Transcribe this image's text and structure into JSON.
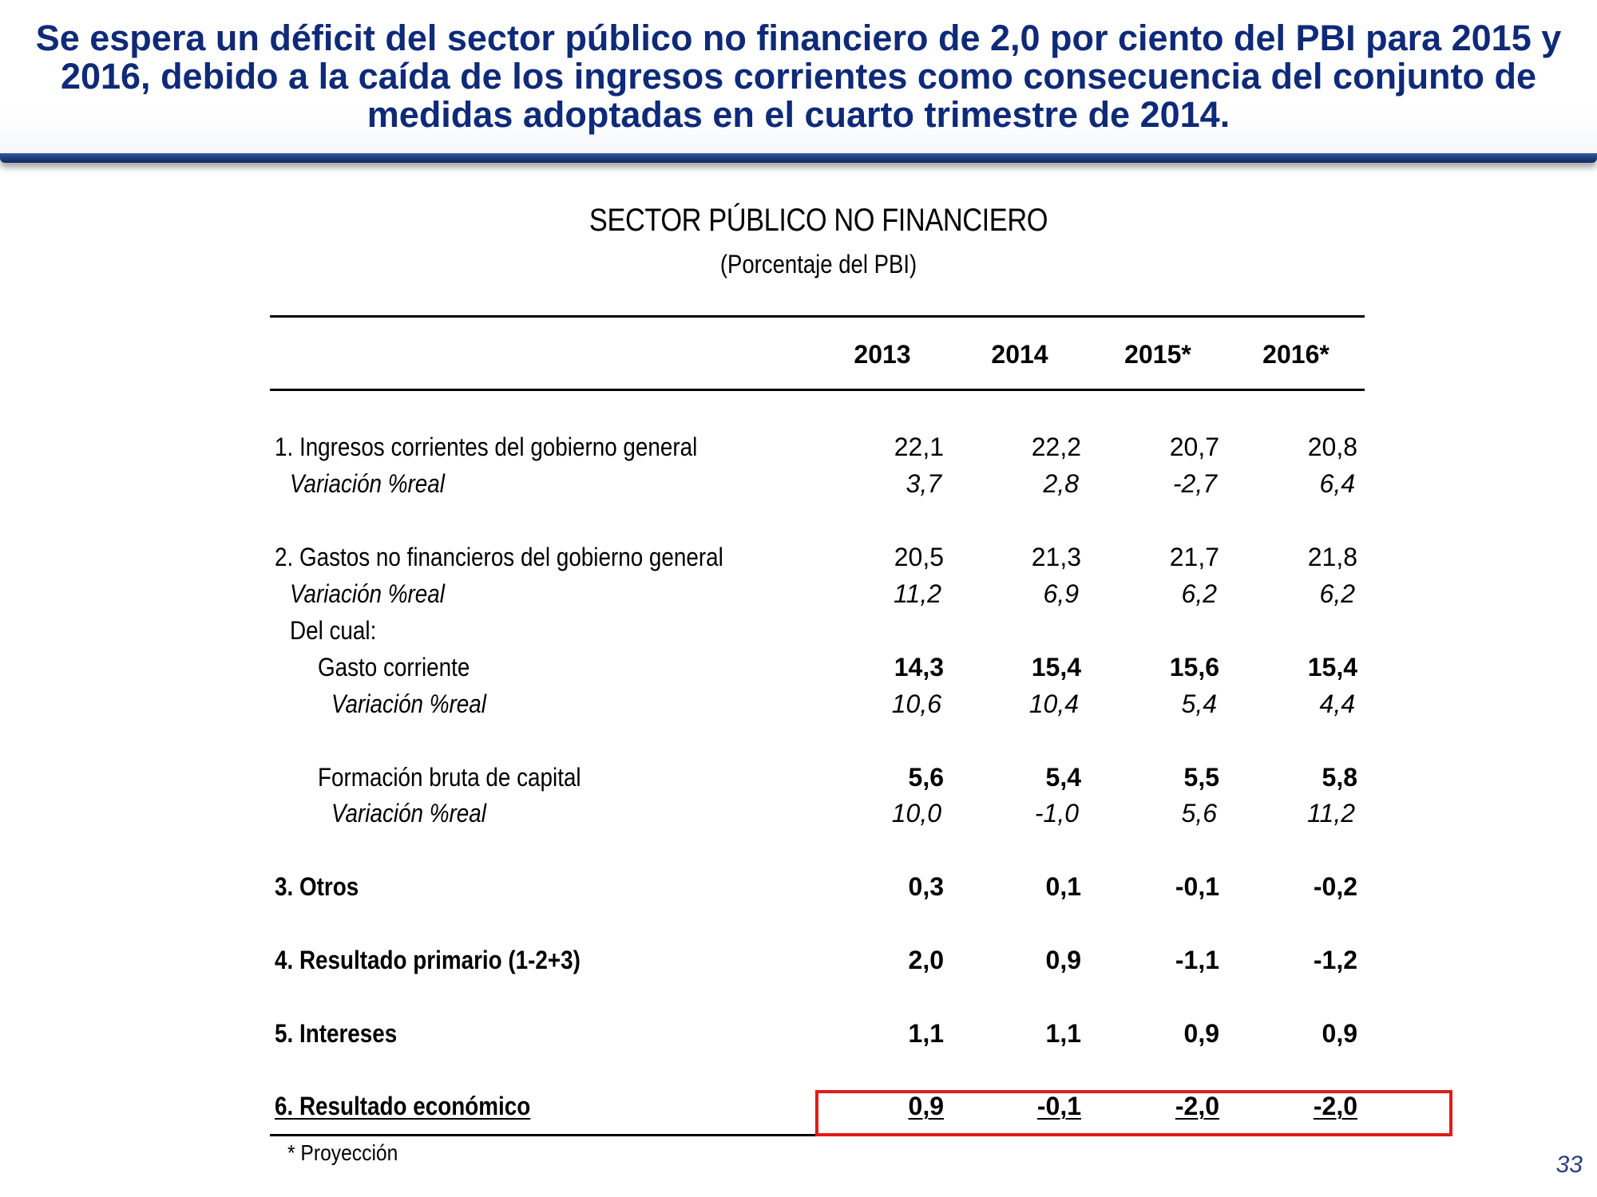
{
  "header": {
    "title": "Se espera un déficit del sector público no financiero de 2,0 por ciento del PBI para 2015 y 2016, debido a la caída de los ingresos corrientes como consecuencia del conjunto de medidas adoptadas en el cuarto trimestre de 2014."
  },
  "table": {
    "title": "SECTOR PÚBLICO NO FINANCIERO",
    "subtitle": "(Porcentaje del PBI)",
    "columns": [
      "2013",
      "2014",
      "2015*",
      "2016*"
    ],
    "rows": [
      {
        "label": "1. Ingresos corrientes del gobierno general",
        "values": [
          "22,1",
          "22,2",
          "20,7",
          "20,8"
        ]
      },
      {
        "label": "Variación %real",
        "values": [
          "3,7",
          "2,8",
          "-2,7",
          "6,4"
        ]
      },
      {
        "label": "2. Gastos no financieros del gobierno general",
        "values": [
          "20,5",
          "21,3",
          "21,7",
          "21,8"
        ]
      },
      {
        "label": "Variación %real",
        "values": [
          "11,2",
          "6,9",
          "6,2",
          "6,2"
        ]
      },
      {
        "label": "Del cual:",
        "values": []
      },
      {
        "label": "Gasto corriente",
        "values": [
          "14,3",
          "15,4",
          "15,6",
          "15,4"
        ]
      },
      {
        "label": "Variación %real",
        "values": [
          "10,6",
          "10,4",
          "5,4",
          "4,4"
        ]
      },
      {
        "label": "Formación bruta de capital",
        "values": [
          "5,6",
          "5,4",
          "5,5",
          "5,8"
        ]
      },
      {
        "label": "Variación %real",
        "values": [
          "10,0",
          "-1,0",
          "5,6",
          "11,2"
        ]
      },
      {
        "label": "3. Otros",
        "values": [
          "0,3",
          "0,1",
          "-0,1",
          "-0,2"
        ]
      },
      {
        "label": "4. Resultado primario (1-2+3)",
        "values": [
          "2,0",
          "0,9",
          "-1,1",
          "-1,2"
        ]
      },
      {
        "label": "5. Intereses",
        "values": [
          "1,1",
          "1,1",
          "0,9",
          "0,9"
        ]
      },
      {
        "label": "6. Resultado económico",
        "values": [
          "0,9",
          "-0,1",
          "-2,0",
          "-2,0"
        ]
      }
    ],
    "footnote": "* Proyección"
  },
  "colors": {
    "title_blue": "#0e2a78",
    "banner_bar": "#203e80",
    "highlight_red": "#e01b1b"
  },
  "page_number": "33"
}
